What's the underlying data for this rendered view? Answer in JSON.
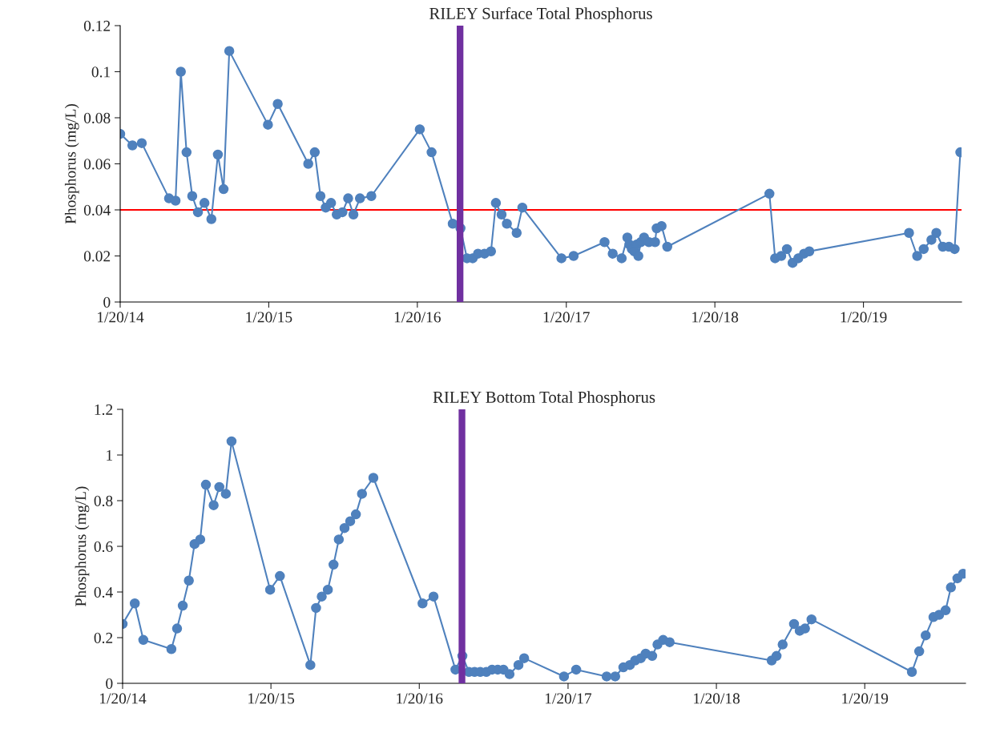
{
  "chart_data": [
    {
      "type": "line",
      "title": "RILEY Surface Total Phosphorus",
      "ylabel": "Phosphorus (mg/L)",
      "x": [
        "2014-01-20",
        "2014-02-19",
        "2014-03-14",
        "2014-05-20",
        "2014-06-05",
        "2014-06-18",
        "2014-07-02",
        "2014-07-16",
        "2014-07-30",
        "2014-08-15",
        "2014-09-01",
        "2014-09-17",
        "2014-10-01",
        "2014-10-15",
        "2015-01-18",
        "2015-02-11",
        "2015-04-27",
        "2015-05-13",
        "2015-05-27",
        "2015-06-09",
        "2015-06-22",
        "2015-07-06",
        "2015-07-20",
        "2015-08-03",
        "2015-08-16",
        "2015-09-01",
        "2015-09-29",
        "2016-01-26",
        "2016-02-24",
        "2016-04-16",
        "2016-05-05",
        "2016-05-21",
        "2016-06-04",
        "2016-06-17",
        "2016-07-03",
        "2016-07-19",
        "2016-07-31",
        "2016-08-14",
        "2016-08-27",
        "2016-09-20",
        "2016-10-04",
        "2017-01-08",
        "2017-02-07",
        "2017-04-24",
        "2017-05-14",
        "2017-06-05",
        "2017-06-19",
        "2017-06-24",
        "2017-06-30",
        "2017-07-06",
        "2017-07-12",
        "2017-07-16",
        "2017-07-22",
        "2017-07-30",
        "2017-08-11",
        "2017-08-26",
        "2017-08-30",
        "2017-09-11",
        "2017-09-25",
        "2018-06-03",
        "2018-06-17",
        "2018-07-02",
        "2018-07-16",
        "2018-07-30",
        "2018-08-13",
        "2018-08-27",
        "2018-09-09",
        "2019-05-12",
        "2019-06-01",
        "2019-06-17",
        "2019-07-06",
        "2019-07-18",
        "2019-08-03",
        "2019-08-18",
        "2019-09-01",
        "2019-09-15"
      ],
      "series": [
        {
          "color": "#4f81bd",
          "values": [
            0.073,
            0.068,
            0.069,
            0.045,
            0.044,
            0.1,
            0.065,
            0.046,
            0.039,
            0.043,
            0.036,
            0.064,
            0.049,
            0.109,
            0.077,
            0.086,
            0.06,
            0.065,
            0.046,
            0.041,
            0.043,
            0.038,
            0.039,
            0.045,
            0.038,
            0.045,
            0.046,
            0.075,
            0.065,
            0.034,
            0.032,
            0.019,
            0.019,
            0.021,
            0.021,
            0.022,
            0.043,
            0.038,
            0.034,
            0.03,
            0.041,
            0.019,
            0.02,
            0.026,
            0.021,
            0.019,
            0.028,
            0.025,
            0.023,
            0.022,
            0.025,
            0.02,
            0.026,
            0.028,
            0.026,
            0.026,
            0.032,
            0.033,
            0.024,
            0.047,
            0.019,
            0.02,
            0.023,
            0.017,
            0.019,
            0.021,
            0.022,
            0.03,
            0.02,
            0.023,
            0.027,
            0.03,
            0.024,
            0.024,
            0.023,
            0.065
          ]
        }
      ],
      "xlim": [
        "2014-01-20",
        "2019-09-18"
      ],
      "xticks": [
        {
          "value": "2014-01-20",
          "label": "1/20/14"
        },
        {
          "value": "2015-01-20",
          "label": "1/20/15"
        },
        {
          "value": "2016-01-20",
          "label": "1/20/16"
        },
        {
          "value": "2017-01-20",
          "label": "1/20/17"
        },
        {
          "value": "2018-01-20",
          "label": "1/20/18"
        },
        {
          "value": "2019-01-20",
          "label": "1/20/19"
        }
      ],
      "ylim": [
        0,
        0.12
      ],
      "yticks": [
        0,
        0.02,
        0.04,
        0.06,
        0.08,
        0.1,
        0.12
      ],
      "ref_lines": [
        {
          "axis": "y",
          "value": 0.04,
          "color": "#ff0000"
        },
        {
          "axis": "x",
          "value": "2016-05-04",
          "color": "#7030a0"
        }
      ],
      "marker": "circle",
      "grid": false,
      "legend": false
    },
    {
      "type": "line",
      "title": "RILEY Bottom Total Phosphorus",
      "ylabel": "Phosphorus (mg/L)",
      "x": [
        "2014-01-20",
        "2014-02-19",
        "2014-03-12",
        "2014-05-20",
        "2014-06-03",
        "2014-06-17",
        "2014-07-02",
        "2014-07-16",
        "2014-07-30",
        "2014-08-13",
        "2014-09-01",
        "2014-09-15",
        "2014-10-01",
        "2014-10-15",
        "2015-01-18",
        "2015-02-11",
        "2015-04-27",
        "2015-05-11",
        "2015-05-25",
        "2015-06-09",
        "2015-06-23",
        "2015-07-06",
        "2015-07-20",
        "2015-08-03",
        "2015-08-17",
        "2015-09-01",
        "2015-09-29",
        "2016-01-28",
        "2016-02-24",
        "2016-04-18",
        "2016-05-05",
        "2016-05-21",
        "2016-06-04",
        "2016-06-18",
        "2016-07-03",
        "2016-07-17",
        "2016-07-31",
        "2016-08-14",
        "2016-08-29",
        "2016-09-20",
        "2016-10-04",
        "2017-01-10",
        "2017-02-09",
        "2017-04-25",
        "2017-05-16",
        "2017-06-05",
        "2017-06-21",
        "2017-07-04",
        "2017-07-18",
        "2017-07-30",
        "2017-08-15",
        "2017-08-28",
        "2017-09-11",
        "2017-09-27",
        "2018-06-05",
        "2018-06-17",
        "2018-07-02",
        "2018-07-30",
        "2018-08-13",
        "2018-08-26",
        "2018-09-11",
        "2019-05-16",
        "2019-06-03",
        "2019-06-19",
        "2019-07-08",
        "2019-07-22",
        "2019-08-07",
        "2019-08-20",
        "2019-09-05",
        "2019-09-19"
      ],
      "series": [
        {
          "color": "#4f81bd",
          "values": [
            0.26,
            0.35,
            0.19,
            0.15,
            0.24,
            0.34,
            0.45,
            0.61,
            0.63,
            0.87,
            0.78,
            0.86,
            0.83,
            1.06,
            0.41,
            0.47,
            0.08,
            0.33,
            0.38,
            0.41,
            0.52,
            0.63,
            0.68,
            0.71,
            0.74,
            0.83,
            0.9,
            0.35,
            0.38,
            0.06,
            0.12,
            0.05,
            0.05,
            0.05,
            0.05,
            0.06,
            0.06,
            0.06,
            0.04,
            0.08,
            0.11,
            0.03,
            0.06,
            0.03,
            0.03,
            0.07,
            0.08,
            0.1,
            0.11,
            0.13,
            0.12,
            0.17,
            0.19,
            0.18,
            0.1,
            0.12,
            0.17,
            0.26,
            0.23,
            0.24,
            0.28,
            0.05,
            0.14,
            0.21,
            0.29,
            0.3,
            0.32,
            0.42,
            0.46,
            0.48
          ]
        }
      ],
      "xlim": [
        "2014-01-20",
        "2019-09-25"
      ],
      "xticks": [
        {
          "value": "2014-01-20",
          "label": "1/20/14"
        },
        {
          "value": "2015-01-20",
          "label": "1/20/15"
        },
        {
          "value": "2016-01-20",
          "label": "1/20/16"
        },
        {
          "value": "2017-01-20",
          "label": "1/20/17"
        },
        {
          "value": "2018-01-20",
          "label": "1/20/18"
        },
        {
          "value": "2019-01-20",
          "label": "1/20/19"
        }
      ],
      "ylim": [
        0,
        1.2
      ],
      "yticks": [
        0,
        0.2,
        0.4,
        0.6,
        0.8,
        1,
        1.2
      ],
      "ref_lines": [
        {
          "axis": "x",
          "value": "2016-05-04",
          "color": "#7030a0"
        }
      ],
      "marker": "circle",
      "grid": false,
      "legend": false
    }
  ]
}
